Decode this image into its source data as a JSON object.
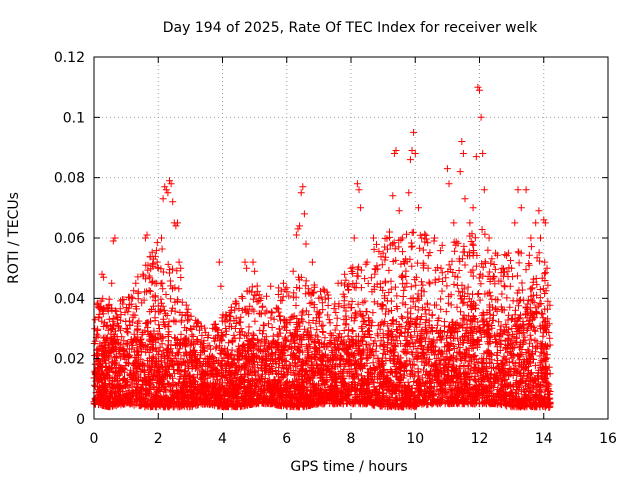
{
  "chart_data": {
    "type": "scatter",
    "title": "Day 194 of 2025, Rate Of TEC Index for receiver welk",
    "xlabel": "GPS time / hours",
    "ylabel": "ROTI / TECUs",
    "xlim": [
      0,
      16
    ],
    "ylim": [
      0,
      0.12
    ],
    "x_ticks": [
      "0",
      "2",
      "4",
      "6",
      "8",
      "10",
      "12",
      "14",
      "16"
    ],
    "y_ticks": [
      "0",
      "0.02",
      "0.04",
      "0.06",
      "0.08",
      "0.1",
      "0.12"
    ],
    "x_tick_values": [
      0,
      2,
      4,
      6,
      8,
      10,
      12,
      14,
      16
    ],
    "y_tick_values": [
      0,
      0.02,
      0.04,
      0.06,
      0.07999999999999999,
      0.1,
      0.12
    ],
    "grid": true,
    "marker": "+",
    "color": "#ff0000",
    "data_x_range": [
      0,
      14.2
    ],
    "series": [
      {
        "name": "ROTI",
        "points": [
          [
            0.1,
            0.038
          ],
          [
            0.15,
            0.037
          ],
          [
            0.25,
            0.048
          ],
          [
            0.3,
            0.047
          ],
          [
            0.55,
            0.045
          ],
          [
            0.6,
            0.059
          ],
          [
            0.65,
            0.06
          ],
          [
            1.0,
            0.03
          ],
          [
            1.2,
            0.04
          ],
          [
            1.3,
            0.045
          ],
          [
            1.6,
            0.06
          ],
          [
            1.65,
            0.061
          ],
          [
            1.9,
            0.045
          ],
          [
            2.0,
            0.05
          ],
          [
            2.1,
            0.06
          ],
          [
            2.15,
            0.073
          ],
          [
            2.2,
            0.077
          ],
          [
            2.25,
            0.076
          ],
          [
            2.3,
            0.075
          ],
          [
            2.35,
            0.079
          ],
          [
            2.4,
            0.078
          ],
          [
            2.45,
            0.072
          ],
          [
            2.5,
            0.065
          ],
          [
            2.55,
            0.064
          ],
          [
            2.6,
            0.065
          ],
          [
            2.65,
            0.052
          ],
          [
            2.7,
            0.05
          ],
          [
            3.0,
            0.03
          ],
          [
            3.4,
            0.025
          ],
          [
            3.8,
            0.03
          ],
          [
            3.9,
            0.052
          ],
          [
            3.95,
            0.044
          ],
          [
            4.1,
            0.03
          ],
          [
            4.4,
            0.03
          ],
          [
            4.7,
            0.052
          ],
          [
            4.75,
            0.05
          ],
          [
            4.95,
            0.052
          ],
          [
            5.0,
            0.049
          ],
          [
            5.2,
            0.04
          ],
          [
            5.5,
            0.044
          ],
          [
            5.9,
            0.045
          ],
          [
            6.2,
            0.049
          ],
          [
            6.3,
            0.061
          ],
          [
            6.35,
            0.063
          ],
          [
            6.4,
            0.064
          ],
          [
            6.45,
            0.075
          ],
          [
            6.5,
            0.077
          ],
          [
            6.55,
            0.068
          ],
          [
            6.6,
            0.058
          ],
          [
            6.8,
            0.052
          ],
          [
            7.0,
            0.04
          ],
          [
            7.3,
            0.04
          ],
          [
            7.6,
            0.045
          ],
          [
            7.8,
            0.048
          ],
          [
            8.0,
            0.05
          ],
          [
            8.1,
            0.06
          ],
          [
            8.2,
            0.078
          ],
          [
            8.25,
            0.076
          ],
          [
            8.3,
            0.07
          ],
          [
            8.5,
            0.052
          ],
          [
            8.7,
            0.06
          ],
          [
            9.0,
            0.055
          ],
          [
            9.2,
            0.062
          ],
          [
            9.3,
            0.074
          ],
          [
            9.35,
            0.088
          ],
          [
            9.4,
            0.089
          ],
          [
            9.5,
            0.069
          ],
          [
            9.6,
            0.06
          ],
          [
            9.7,
            0.053
          ],
          [
            9.8,
            0.075
          ],
          [
            9.85,
            0.086
          ],
          [
            9.9,
            0.089
          ],
          [
            9.95,
            0.095
          ],
          [
            10.0,
            0.088
          ],
          [
            10.1,
            0.07
          ],
          [
            10.2,
            0.06
          ],
          [
            10.4,
            0.05
          ],
          [
            10.6,
            0.06
          ],
          [
            10.8,
            0.05
          ],
          [
            11.0,
            0.083
          ],
          [
            11.05,
            0.078
          ],
          [
            11.2,
            0.065
          ],
          [
            11.4,
            0.082
          ],
          [
            11.45,
            0.092
          ],
          [
            11.5,
            0.088
          ],
          [
            11.55,
            0.073
          ],
          [
            11.7,
            0.065
          ],
          [
            11.8,
            0.07
          ],
          [
            11.9,
            0.087
          ],
          [
            11.95,
            0.11
          ],
          [
            12.0,
            0.109
          ],
          [
            12.05,
            0.1
          ],
          [
            12.1,
            0.088
          ],
          [
            12.15,
            0.076
          ],
          [
            12.3,
            0.06
          ],
          [
            12.5,
            0.055
          ],
          [
            12.7,
            0.05
          ],
          [
            12.9,
            0.055
          ],
          [
            13.0,
            0.05
          ],
          [
            13.1,
            0.065
          ],
          [
            13.2,
            0.076
          ],
          [
            13.3,
            0.07
          ],
          [
            13.45,
            0.076
          ],
          [
            13.6,
            0.06
          ],
          [
            13.75,
            0.065
          ],
          [
            13.85,
            0.069
          ],
          [
            13.9,
            0.06
          ],
          [
            14.0,
            0.066
          ],
          [
            14.05,
            0.065
          ],
          [
            14.1,
            0.05
          ],
          [
            14.15,
            0.01
          ],
          [
            14.2,
            0.005
          ]
        ],
        "envelope": {
          "x": [
            0,
            0.5,
            1,
            1.5,
            2,
            2.5,
            3,
            3.5,
            4,
            4.5,
            5,
            5.5,
            6,
            6.5,
            7,
            7.5,
            8,
            8.5,
            9,
            9.5,
            10,
            10.5,
            11,
            11.5,
            12,
            12.5,
            13,
            13.5,
            14,
            14.2
          ],
          "lower": [
            0.005,
            0.004,
            0.005,
            0.004,
            0.004,
            0.004,
            0.004,
            0.005,
            0.004,
            0.004,
            0.005,
            0.005,
            0.004,
            0.004,
            0.005,
            0.005,
            0.005,
            0.005,
            0.004,
            0.004,
            0.004,
            0.005,
            0.005,
            0.005,
            0.005,
            0.005,
            0.004,
            0.004,
            0.004,
            0.003
          ],
          "dense_top": [
            0.025,
            0.025,
            0.025,
            0.028,
            0.028,
            0.027,
            0.022,
            0.02,
            0.022,
            0.024,
            0.025,
            0.025,
            0.027,
            0.028,
            0.026,
            0.025,
            0.027,
            0.03,
            0.032,
            0.032,
            0.033,
            0.03,
            0.03,
            0.033,
            0.034,
            0.03,
            0.03,
            0.035,
            0.035,
            0.025
          ],
          "sparse_top": [
            0.04,
            0.04,
            0.04,
            0.05,
            0.06,
            0.055,
            0.035,
            0.03,
            0.035,
            0.04,
            0.045,
            0.042,
            0.045,
            0.05,
            0.045,
            0.045,
            0.05,
            0.055,
            0.06,
            0.065,
            0.065,
            0.06,
            0.058,
            0.06,
            0.065,
            0.055,
            0.055,
            0.058,
            0.055,
            0.04
          ],
          "density": 6000,
          "seed": 194
        }
      }
    ]
  }
}
